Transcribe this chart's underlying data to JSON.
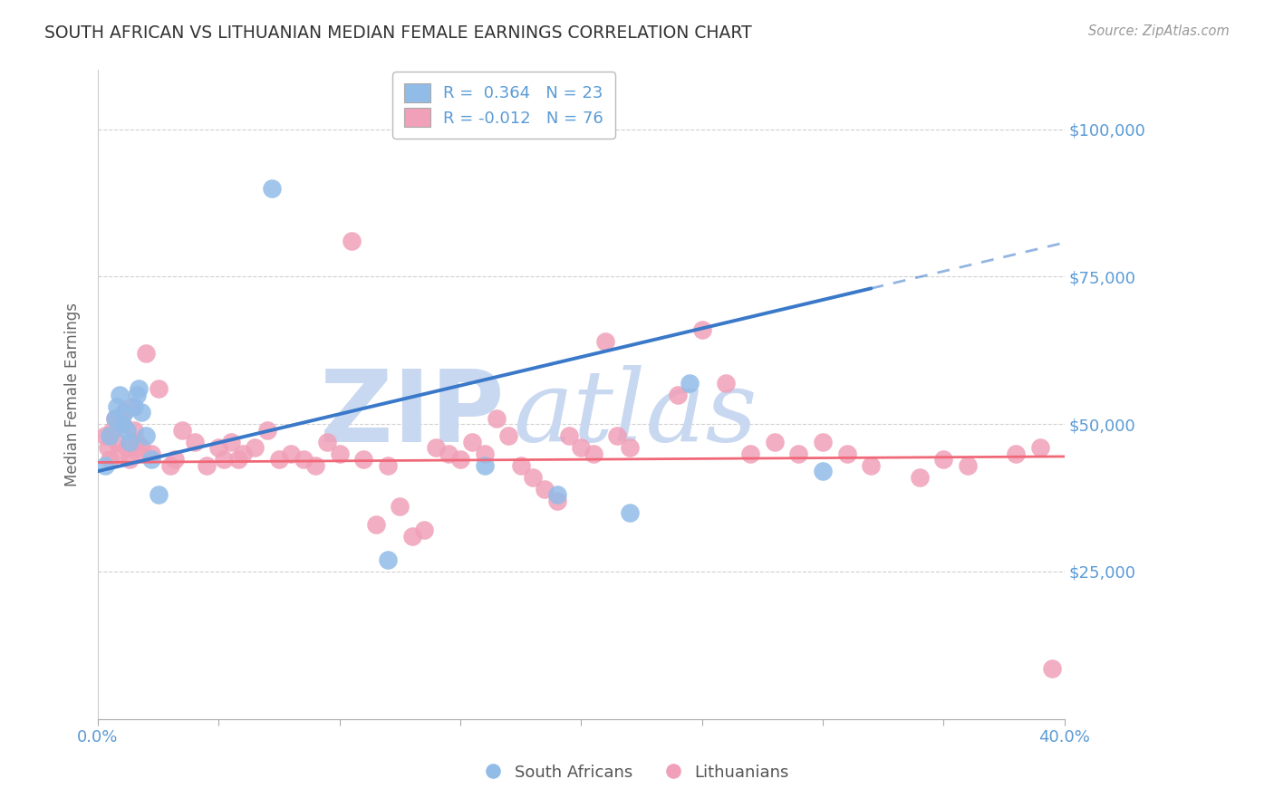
{
  "title": "SOUTH AFRICAN VS LITHUANIAN MEDIAN FEMALE EARNINGS CORRELATION CHART",
  "source": "Source: ZipAtlas.com",
  "ylabel": "Median Female Earnings",
  "xlim": [
    0.0,
    0.4
  ],
  "ylim": [
    0,
    110000
  ],
  "background_color": "#ffffff",
  "grid_color": "#cccccc",
  "title_color": "#333333",
  "axis_color": "#5b9bd5",
  "watermark": "ZIPAtlas",
  "watermark_color": "#c8d8f0",
  "sa_color": "#92bce8",
  "lt_color": "#f0a0b8",
  "sa_line_color": "#3a78c9",
  "lt_line_color": "#f06878",
  "sa_label": "South Africans",
  "lt_label": "Lithuanians",
  "sa_R": 0.364,
  "sa_N": 23,
  "lt_R": -0.012,
  "lt_N": 76,
  "sa_line_x0": 0.0,
  "sa_line_y0": 42000,
  "sa_line_x1": 0.32,
  "sa_line_y1": 73000,
  "sa_line_solid_end": 0.32,
  "sa_line_dashed_end": 0.4,
  "lt_line_x0": 0.0,
  "lt_line_y0": 43500,
  "lt_line_x1": 0.4,
  "lt_line_y1": 44500,
  "sa_x": [
    0.003,
    0.005,
    0.007,
    0.008,
    0.009,
    0.01,
    0.011,
    0.012,
    0.013,
    0.015,
    0.016,
    0.017,
    0.018,
    0.02,
    0.022,
    0.025,
    0.072,
    0.12,
    0.16,
    0.19,
    0.22,
    0.245,
    0.3
  ],
  "sa_y": [
    43000,
    48000,
    51000,
    53000,
    55000,
    50000,
    52000,
    49000,
    47000,
    53000,
    55000,
    56000,
    52000,
    48000,
    44000,
    38000,
    90000,
    27000,
    43000,
    38000,
    35000,
    57000,
    42000
  ],
  "lt_x": [
    0.003,
    0.004,
    0.005,
    0.006,
    0.007,
    0.008,
    0.009,
    0.01,
    0.011,
    0.012,
    0.013,
    0.014,
    0.015,
    0.016,
    0.017,
    0.018,
    0.02,
    0.022,
    0.025,
    0.03,
    0.032,
    0.035,
    0.04,
    0.045,
    0.05,
    0.052,
    0.055,
    0.058,
    0.06,
    0.065,
    0.07,
    0.075,
    0.08,
    0.085,
    0.09,
    0.095,
    0.1,
    0.105,
    0.11,
    0.115,
    0.12,
    0.125,
    0.13,
    0.135,
    0.14,
    0.145,
    0.15,
    0.155,
    0.16,
    0.165,
    0.17,
    0.175,
    0.18,
    0.185,
    0.19,
    0.195,
    0.2,
    0.205,
    0.21,
    0.215,
    0.22,
    0.24,
    0.25,
    0.26,
    0.27,
    0.28,
    0.29,
    0.3,
    0.31,
    0.32,
    0.34,
    0.35,
    0.36,
    0.38,
    0.39,
    0.395
  ],
  "lt_y": [
    48000,
    46000,
    44000,
    49000,
    51000,
    47000,
    45000,
    50000,
    52000,
    46000,
    44000,
    53000,
    49000,
    47000,
    45000,
    46000,
    62000,
    45000,
    56000,
    43000,
    44000,
    49000,
    47000,
    43000,
    46000,
    44000,
    47000,
    44000,
    45000,
    46000,
    49000,
    44000,
    45000,
    44000,
    43000,
    47000,
    45000,
    81000,
    44000,
    33000,
    43000,
    36000,
    31000,
    32000,
    46000,
    45000,
    44000,
    47000,
    45000,
    51000,
    48000,
    43000,
    41000,
    39000,
    37000,
    48000,
    46000,
    45000,
    64000,
    48000,
    46000,
    55000,
    66000,
    57000,
    45000,
    47000,
    45000,
    47000,
    45000,
    43000,
    41000,
    44000,
    43000,
    45000,
    46000,
    8500
  ]
}
